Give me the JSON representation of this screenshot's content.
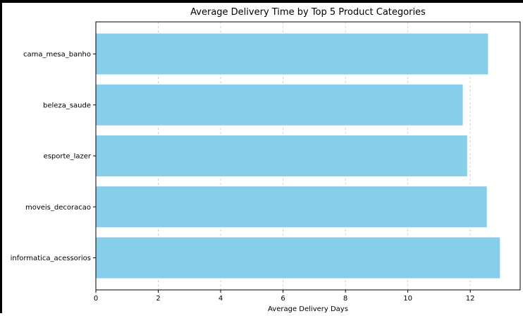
{
  "chart_data": {
    "type": "bar",
    "orientation": "horizontal",
    "title": "Average Delivery Time by Top 5 Product Categories",
    "xlabel": "Average Delivery Days",
    "ylabel": "",
    "categories": [
      "cama_mesa_banho",
      "beleza_saude",
      "esporte_lazer",
      "moveis_decoracao",
      "informatica_acessorios"
    ],
    "values": [
      12.57,
      11.76,
      11.9,
      12.53,
      12.95
    ],
    "xlim": [
      0,
      13.6
    ],
    "xticks": [
      "0",
      "2",
      "4",
      "6",
      "8",
      "10",
      "12"
    ],
    "grid": "vertical dashed",
    "legend": "none",
    "colors": {
      "bar": "#87CEEB",
      "grid": "#cfcfcf",
      "axis": "#000000"
    }
  }
}
